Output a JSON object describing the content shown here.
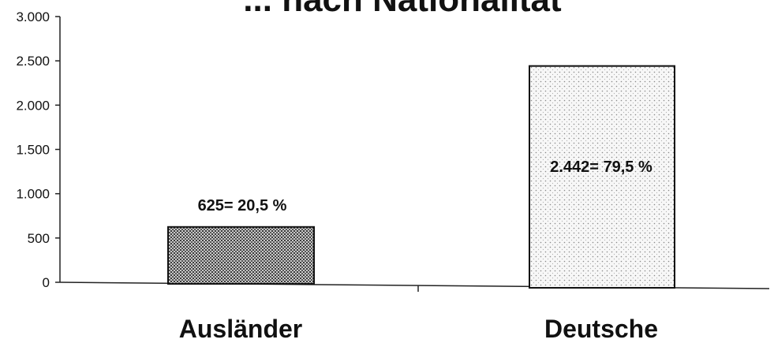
{
  "chart_data": {
    "type": "bar",
    "title": "... nach Nationalität",
    "categories": [
      "Ausländer",
      "Deutsche"
    ],
    "values": [
      625,
      2442
    ],
    "data_labels": [
      "625= 20,5 %",
      "2.442= 79,5 %"
    ],
    "ylim": [
      0,
      3000
    ],
    "yticks": [
      0,
      500,
      1000,
      1500,
      2000,
      2500,
      3000
    ],
    "ytick_labels": [
      "0",
      "500",
      "1.000",
      "1.500",
      "2.000",
      "2.500",
      "3.000"
    ],
    "xlabel": "",
    "ylabel": "",
    "grid": false,
    "legend": "none",
    "series_fill": [
      "dark-stipple",
      "light-stipple"
    ]
  }
}
